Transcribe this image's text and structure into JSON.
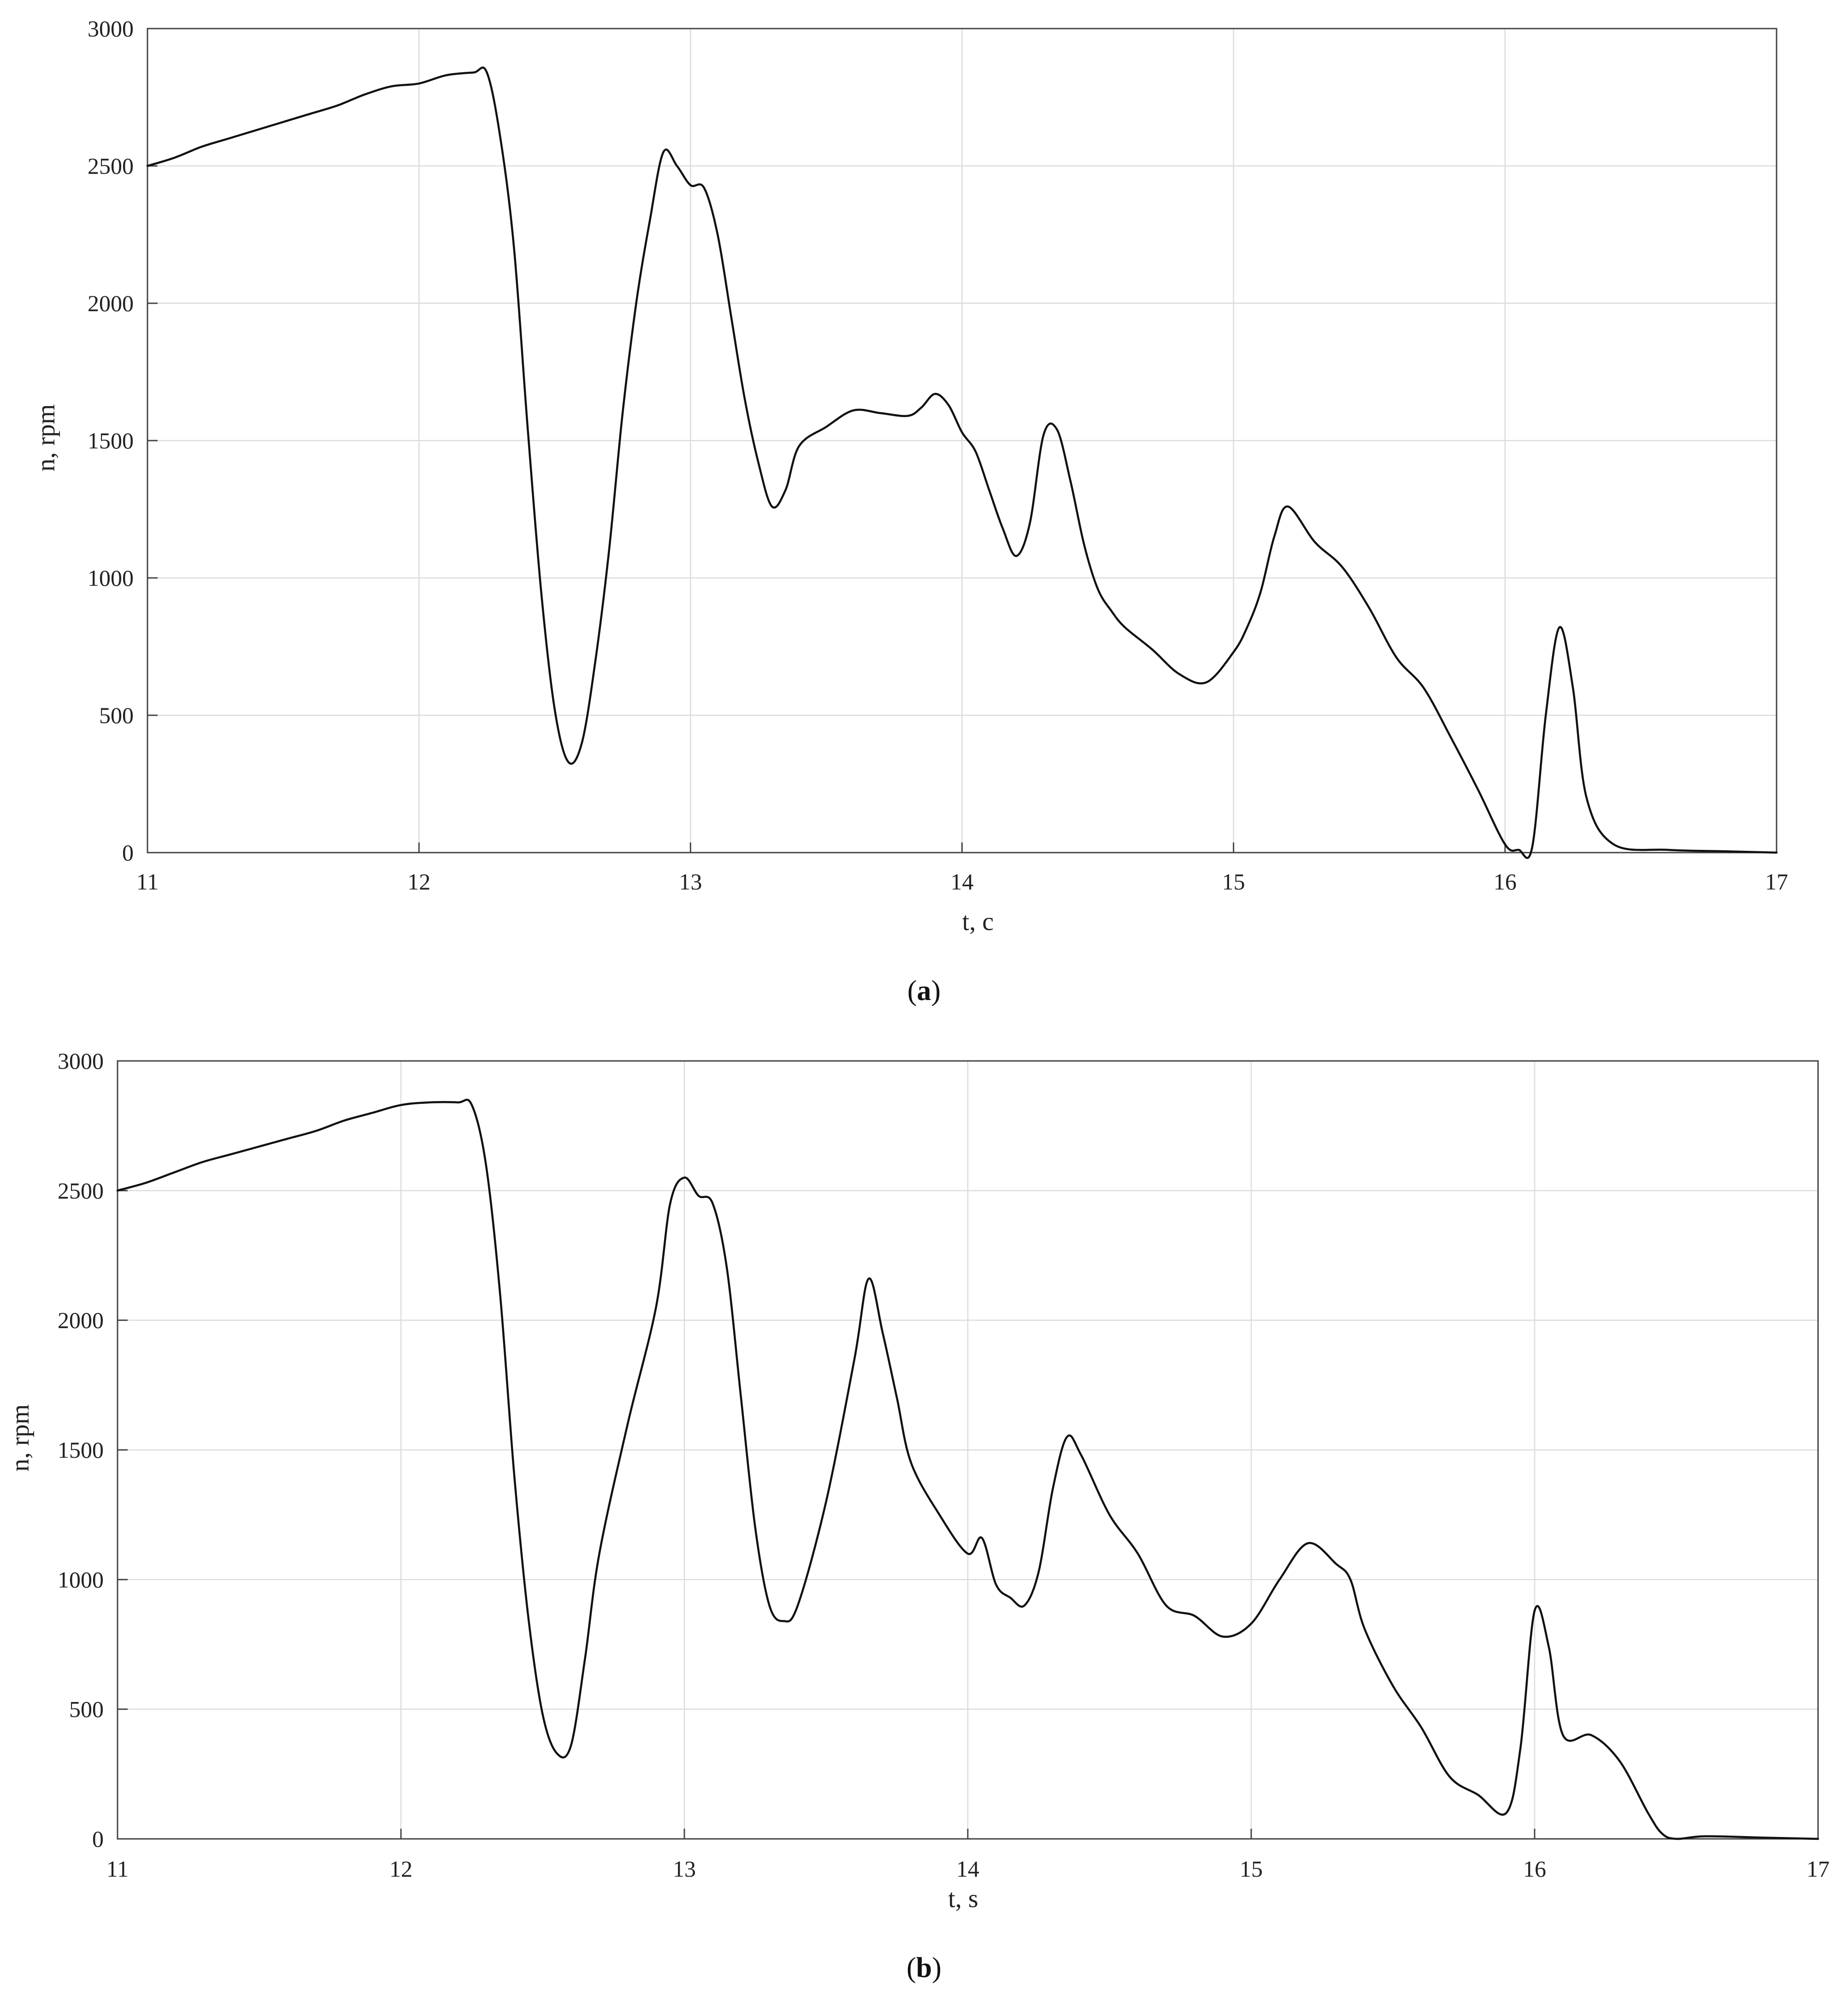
{
  "figure": {
    "panels": [
      {
        "label_open": "(",
        "label_letter": "a",
        "label_close": ")"
      },
      {
        "label_open": "(",
        "label_letter": "b",
        "label_close": ")"
      }
    ]
  },
  "colors": {
    "line": "#111111",
    "grid": "#dcdcdc",
    "axes": "#444444"
  },
  "chart_data": [
    {
      "type": "line",
      "title": "",
      "xlabel": "t, c",
      "ylabel": "n, rpm",
      "xlim": [
        11,
        17
      ],
      "ylim": [
        0,
        3000
      ],
      "xticks": [
        11,
        12,
        13,
        14,
        15,
        16,
        17
      ],
      "yticks": [
        0,
        500,
        1000,
        1500,
        2000,
        2500,
        3000
      ],
      "grid": true,
      "series": [
        {
          "x": [
            11.0,
            11.1,
            11.2,
            11.3,
            11.4,
            11.5,
            11.6,
            11.7,
            11.8,
            11.9,
            12.0,
            12.1,
            12.2,
            12.25,
            12.3,
            12.35,
            12.4,
            12.45,
            12.5,
            12.55,
            12.6,
            12.65,
            12.7,
            12.75,
            12.8,
            12.85,
            12.9,
            12.95,
            13.0,
            13.05,
            13.1,
            13.15,
            13.2,
            13.25,
            13.3,
            13.35,
            13.4,
            13.5,
            13.6,
            13.7,
            13.8,
            13.85,
            13.9,
            13.95,
            14.0,
            14.05,
            14.1,
            14.15,
            14.2,
            14.25,
            14.3,
            14.35,
            14.4,
            14.45,
            14.5,
            14.55,
            14.6,
            14.7,
            14.8,
            14.9,
            15.0,
            15.05,
            15.1,
            15.15,
            15.2,
            15.3,
            15.4,
            15.5,
            15.6,
            15.7,
            15.8,
            15.9,
            16.0,
            16.05,
            16.1,
            16.15,
            16.2,
            16.25,
            16.3,
            16.4,
            16.6,
            16.8,
            17.0
          ],
          "y": [
            2500,
            2530,
            2570,
            2600,
            2630,
            2660,
            2690,
            2720,
            2760,
            2790,
            2800,
            2830,
            2840,
            2840,
            2600,
            2200,
            1550,
            950,
            520,
            330,
            400,
            700,
            1100,
            1600,
            2000,
            2300,
            2550,
            2500,
            2430,
            2420,
            2250,
            1950,
            1650,
            1420,
            1260,
            1320,
            1480,
            1550,
            1610,
            1600,
            1590,
            1620,
            1670,
            1630,
            1530,
            1460,
            1320,
            1180,
            1080,
            1200,
            1520,
            1540,
            1350,
            1120,
            960,
            880,
            820,
            740,
            650,
            620,
            730,
            820,
            950,
            1150,
            1260,
            1130,
            1040,
            890,
            710,
            600,
            420,
            230,
            30,
            10,
            20,
            500,
            820,
            600,
            200,
            30,
            10,
            5,
            0
          ]
        }
      ]
    },
    {
      "type": "line",
      "title": "",
      "xlabel": "t, s",
      "ylabel": "n, rpm",
      "xlim": [
        11,
        17
      ],
      "ylim": [
        0,
        3000
      ],
      "xticks": [
        11,
        12,
        13,
        14,
        15,
        16,
        17
      ],
      "yticks": [
        0,
        500,
        1000,
        1500,
        2000,
        2500,
        3000
      ],
      "grid": true,
      "series": [
        {
          "x": [
            11.0,
            11.1,
            11.2,
            11.3,
            11.4,
            11.5,
            11.6,
            11.7,
            11.8,
            11.9,
            12.0,
            12.1,
            12.2,
            12.25,
            12.3,
            12.35,
            12.4,
            12.45,
            12.5,
            12.55,
            12.6,
            12.65,
            12.7,
            12.8,
            12.9,
            12.95,
            13.0,
            13.05,
            13.1,
            13.15,
            13.2,
            13.25,
            13.3,
            13.35,
            13.4,
            13.5,
            13.6,
            13.65,
            13.7,
            13.75,
            13.8,
            13.9,
            14.0,
            14.05,
            14.1,
            14.15,
            14.2,
            14.25,
            14.3,
            14.35,
            14.4,
            14.5,
            14.6,
            14.7,
            14.8,
            14.9,
            15.0,
            15.1,
            15.2,
            15.3,
            15.35,
            15.4,
            15.5,
            15.6,
            15.7,
            15.8,
            15.9,
            15.95,
            16.0,
            16.05,
            16.1,
            16.2,
            16.3,
            16.4,
            16.45,
            16.5,
            16.6,
            16.8,
            17.0
          ],
          "y": [
            2500,
            2530,
            2570,
            2610,
            2640,
            2670,
            2700,
            2730,
            2770,
            2800,
            2830,
            2840,
            2840,
            2830,
            2600,
            2100,
            1400,
            850,
            480,
            330,
            360,
            700,
            1100,
            1600,
            2050,
            2450,
            2550,
            2480,
            2450,
            2200,
            1700,
            1200,
            900,
            840,
            900,
            1300,
            1850,
            2160,
            1950,
            1700,
            1450,
            1250,
            1100,
            1160,
            980,
            930,
            900,
            1030,
            1350,
            1550,
            1480,
            1250,
            1100,
            900,
            860,
            780,
            830,
            1000,
            1140,
            1060,
            1000,
            810,
            590,
            430,
            240,
            170,
            100,
            350,
            880,
            740,
            400,
            400,
            300,
            100,
            20,
            0,
            10,
            5,
            0
          ]
        }
      ]
    }
  ]
}
